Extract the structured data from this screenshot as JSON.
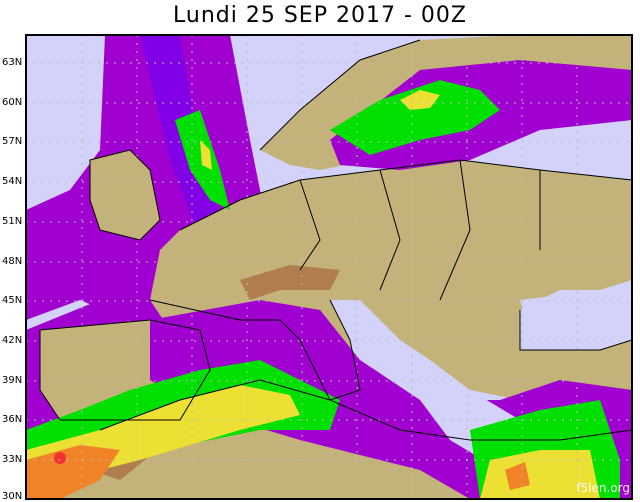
{
  "title": "Lundi 25 SEP 2017 - 00Z",
  "watermark": "f5len.org",
  "latitude_labels": [
    "63N",
    "60N",
    "57N",
    "54N",
    "51N",
    "48N",
    "45N",
    "42N",
    "39N",
    "36N",
    "33N",
    "30N"
  ],
  "colors": {
    "lavender": "#d2d2fa",
    "purple": "#a000d0",
    "violet": "#8200e6",
    "green": "#00e000",
    "yellow": "#ece032",
    "orange": "#f08228",
    "red": "#f03232",
    "land": "#c3b27a",
    "mountain": "#a8663c"
  }
}
